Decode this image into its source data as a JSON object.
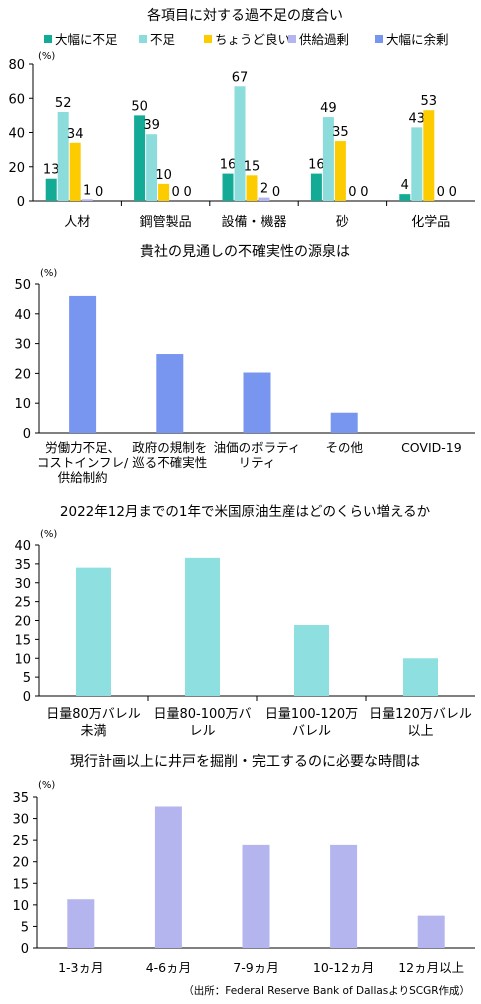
{
  "colors": {
    "axis": "#000000",
    "teal": "#14ab96",
    "cyan": "#8cdcdc",
    "yellow": "#fccc00",
    "lavender": "#b4b4f0",
    "blue": "#7896f0",
    "cyan_light": "#8edfdf",
    "lavender_light": "#b4b4ee"
  },
  "chart_data": [
    {
      "type": "bar",
      "title": "各項目に対する過不足の度合い",
      "unit": "(%)",
      "ylim": [
        0,
        80
      ],
      "yticks": [
        0,
        20,
        40,
        60,
        80
      ],
      "legend_position": "top",
      "categories": [
        "人材",
        "鋼管製品",
        "設備・機器",
        "砂",
        "化学品"
      ],
      "series": [
        {
          "name": "大幅に不足",
          "color": "#14ab96",
          "values": [
            13,
            50,
            16,
            16,
            4
          ]
        },
        {
          "name": "不足",
          "color": "#8cdcdc",
          "values": [
            52,
            39,
            67,
            49,
            43
          ]
        },
        {
          "name": "ちょうど良い",
          "color": "#fccc00",
          "values": [
            34,
            10,
            15,
            35,
            53
          ]
        },
        {
          "name": "供給過剰",
          "color": "#b4b4f0",
          "values": [
            1,
            0,
            2,
            0,
            0
          ]
        },
        {
          "name": "大幅に余剰",
          "color": "#7896f0",
          "values": [
            0,
            0,
            0,
            0,
            0
          ]
        }
      ]
    },
    {
      "type": "bar",
      "title": "貴社の見通しの不確実性の源泉は",
      "unit": "(%)",
      "ylim": [
        0,
        50
      ],
      "yticks": [
        0,
        10,
        20,
        30,
        40,
        50
      ],
      "color": "#7896f0",
      "categories": [
        [
          "労働力不足、",
          "コストインフレ/",
          "供給制約"
        ],
        [
          "政府の規制を",
          "巡る不確実性"
        ],
        [
          "油価のボラティ",
          "リティ"
        ],
        [
          "その他"
        ],
        [
          "COVID-19"
        ]
      ],
      "values": [
        46,
        26.5,
        20.3,
        6.8,
        0
      ]
    },
    {
      "type": "bar",
      "title": "2022年12月までの1年で米国原油生産はどのくらい増えるか",
      "unit": "(%)",
      "ylim": [
        0,
        40
      ],
      "yticks": [
        0,
        5,
        10,
        15,
        20,
        25,
        30,
        35,
        40
      ],
      "color": "#8edfdf",
      "categories": [
        [
          "日量80万バレル",
          "未満"
        ],
        [
          "日量80-100万バ",
          "レル"
        ],
        [
          "日量100-120万",
          "バレル"
        ],
        [
          "日量120万バレル",
          "以上"
        ]
      ],
      "values": [
        34,
        36.6,
        18.8,
        10
      ]
    },
    {
      "type": "bar",
      "title": "現行計画以上に井戸を掘削・完工するのに必要な時間は",
      "unit": "(%)",
      "ylim": [
        0,
        35
      ],
      "yticks": [
        0,
        5,
        10,
        15,
        20,
        25,
        30,
        35
      ],
      "color": "#b4b4ee",
      "categories": [
        [
          "1-3ヵ月"
        ],
        [
          "4-6ヵ月"
        ],
        [
          "7-9ヵ月"
        ],
        [
          "10-12ヵ月"
        ],
        [
          "12ヵ月以上"
        ]
      ],
      "values": [
        11.3,
        32.8,
        23.9,
        23.9,
        7.5
      ]
    }
  ],
  "source": "（出所：Federal Reserve Bank of DallasよりSCGR作成）"
}
